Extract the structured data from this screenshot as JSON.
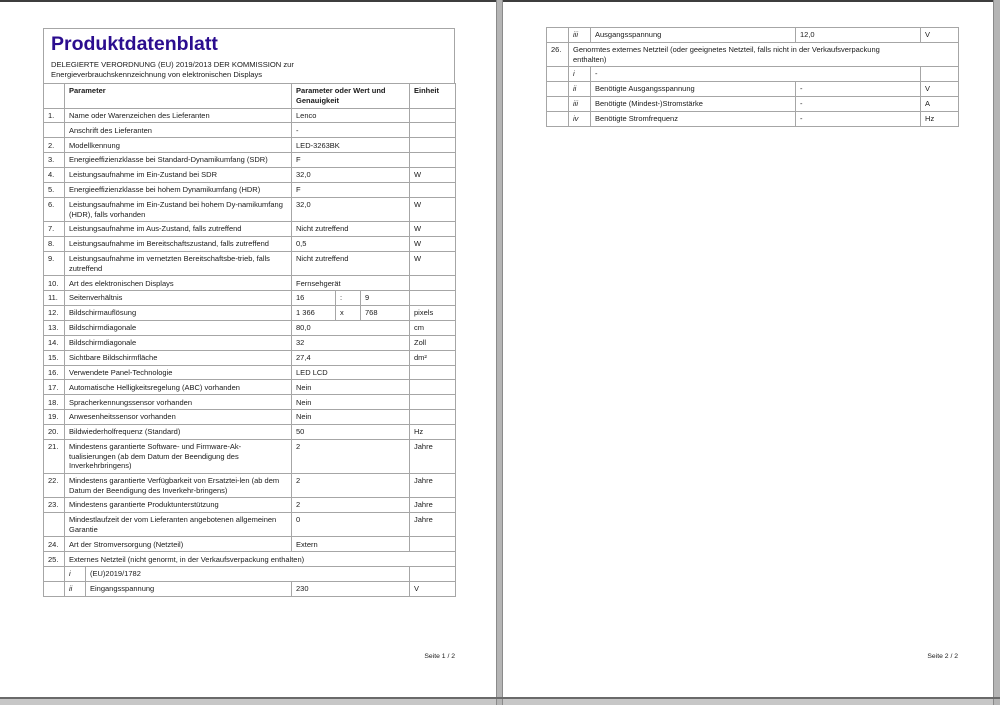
{
  "colors": {
    "title": "#2b0d8f",
    "border": "#a6a6a6",
    "section_border": "#7d7d7d",
    "page_background": "#ffffff",
    "viewer_background": "#c7c7c7"
  },
  "page1": {
    "title": "Produktdatenblatt",
    "subtitle_line1": "DELEGIERTE VERORDNUNG (EU) 2019/2013 DER KOMMISSION zur",
    "subtitle_line2": "Energieverbrauchskennzeichnung von elektronischen Displays",
    "header": {
      "param": "Parameter",
      "value": "Parameter oder Wert und Genauigkeit",
      "unit": "Einheit"
    },
    "rows": [
      {
        "num": "1.",
        "kind": "row",
        "align": "l",
        "param": "Name oder Warenzeichen des Lieferanten",
        "value": "Lenco",
        "unit": ""
      },
      {
        "num": "",
        "kind": "row",
        "align": "l",
        "param": "Anschrift des Lieferanten",
        "value": "-",
        "unit": ""
      },
      {
        "num": "2.",
        "kind": "row",
        "align": "l",
        "param": "Modellkennung",
        "value": "LED-3263BK",
        "unit": ""
      },
      {
        "num": "3.",
        "kind": "row",
        "align": "l",
        "param": "Energieeffizienzklasse bei Standard-Dynamikumfang (SDR)",
        "value": "F",
        "unit": ""
      },
      {
        "num": "4.",
        "kind": "row",
        "align": "r",
        "param": "Leistungsaufnahme im Ein-Zustand bei SDR",
        "value": "32,0",
        "unit": "W"
      },
      {
        "num": "5.",
        "kind": "row",
        "align": "l",
        "param": "Energieeffizienzklasse bei hohem Dynamikumfang (HDR)",
        "value": "F",
        "unit": ""
      },
      {
        "num": "6.",
        "kind": "row",
        "align": "r",
        "param": "Leistungsaufnahme im Ein-Zustand bei hohem Dy-namikumfang (HDR), falls vorhanden",
        "value": "32,0",
        "unit": "W"
      },
      {
        "num": "7.",
        "kind": "row",
        "align": "r",
        "param": "Leistungsaufnahme im Aus-Zustand, falls zutreffend",
        "value": "Nicht zutreffend",
        "unit": "W"
      },
      {
        "num": "8.",
        "kind": "row",
        "align": "r",
        "param": "Leistungsaufnahme im Bereitschaftszustand, falls zutreffend",
        "value": "0,5",
        "unit": "W"
      },
      {
        "num": "9.",
        "kind": "row",
        "align": "r",
        "param": "Leistungsaufnahme im vernetzten Bereitschaftsbe-trieb, falls zutreffend",
        "value": "Nicht zutreffend",
        "unit": "W"
      },
      {
        "num": "10.",
        "kind": "row",
        "align": "r",
        "param": "Art des elektronischen Displays",
        "value": "Fernsehgerät",
        "unit": ""
      },
      {
        "num": "11.",
        "kind": "split",
        "param": "Seitenverhältnis",
        "v1": "16",
        "v2": ":",
        "v3": "9",
        "unit": ""
      },
      {
        "num": "12.",
        "kind": "split",
        "param": "Bildschirmauflösung",
        "v1": "1 366",
        "v2": "x",
        "v3": "768",
        "unit": "pixels"
      },
      {
        "num": "13.",
        "kind": "row",
        "align": "r",
        "param": "Bildschirmdiagonale",
        "value": "80,0",
        "unit": "cm"
      },
      {
        "num": "14.",
        "kind": "row",
        "align": "r",
        "param": "Bildschirmdiagonale",
        "value": "32",
        "unit": "Zoll"
      },
      {
        "num": "15.",
        "kind": "row",
        "align": "r",
        "param": "Sichtbare Bildschirmfläche",
        "value": "27,4",
        "unit": "dm²"
      },
      {
        "num": "16.",
        "kind": "row",
        "align": "r",
        "param": "Verwendete Panel-Technologie",
        "value": "LED LCD",
        "unit": ""
      },
      {
        "num": "17.",
        "kind": "row",
        "align": "r",
        "param": "Automatische Helligkeitsregelung (ABC) vorhanden",
        "value": "Nein",
        "unit": ""
      },
      {
        "num": "18.",
        "kind": "row",
        "align": "r",
        "param": "Spracherkennungssensor vorhanden",
        "value": "Nein",
        "unit": ""
      },
      {
        "num": "19.",
        "kind": "row",
        "align": "r",
        "param": "Anwesenheitssensor vorhanden",
        "value": "Nein",
        "unit": ""
      },
      {
        "num": "20.",
        "kind": "row",
        "align": "r",
        "param": "Bildwiederholfrequenz (Standard)",
        "value": "50",
        "unit": "Hz"
      },
      {
        "num": "21.",
        "kind": "row",
        "align": "r",
        "param": "Mindestens garantierte Software- und Firmware-Ak-tualisierungen (ab dem Datum der Beendigung des Inverkehrbringens)",
        "value": "2",
        "unit": "Jahre"
      },
      {
        "num": "22.",
        "kind": "row",
        "align": "r",
        "param": "Mindestens garantierte Verfügbarkeit von Ersatztei-len (ab dem Datum der Beendigung des Inverkehr-bringens)",
        "value": "2",
        "unit": "Jahre"
      },
      {
        "num": "23.",
        "kind": "row",
        "align": "r",
        "param": "Mindestens garantierte Produktunterstützung",
        "value": "2",
        "unit": "Jahre"
      },
      {
        "num": "",
        "kind": "row",
        "align": "r",
        "param": "Mindestlaufzeit der vom Lieferanten angebotenen allgemeinen Garantie",
        "value": "0",
        "unit": "Jahre"
      },
      {
        "num": "24.",
        "kind": "row",
        "align": "l",
        "param": "Art der Stromversorgung (Netzteil)",
        "value": "Extern",
        "unit": ""
      },
      {
        "num": "25.",
        "kind": "section",
        "param": "Externes Netzteil (nicht genormt, in der Verkaufsverpackung enthalten)"
      },
      {
        "num": "",
        "kind": "subwide",
        "sub": "i",
        "param": "(EU)2019/1782",
        "unit": ""
      },
      {
        "num": "",
        "kind": "sub",
        "align": "r",
        "sub": "ii",
        "param": "Eingangsspannung",
        "value": "230",
        "unit": "V"
      }
    ],
    "footer": "Seite 1 / 2"
  },
  "page2": {
    "rows": [
      {
        "num": "",
        "kind": "sub",
        "align": "r",
        "sub": "iii",
        "param": "Ausgangsspannung",
        "value": "12,0",
        "unit": "V"
      },
      {
        "num": "26.",
        "kind": "section",
        "param": "Genormtes externes Netzteil (oder geeignetes Netzteil, falls nicht in der Verkaufsverpackung\nenthalten)"
      },
      {
        "num": "",
        "kind": "subwide",
        "sub": "i",
        "param": "-",
        "unit": ""
      },
      {
        "num": "",
        "kind": "sub",
        "align": "r",
        "sub": "ii",
        "param": "Benötigte Ausgangsspannung",
        "value": "-",
        "unit": "V"
      },
      {
        "num": "",
        "kind": "sub",
        "align": "r",
        "sub": "iii",
        "param": "Benötigte (Mindest-)Stromstärke",
        "value": "-",
        "unit": "A"
      },
      {
        "num": "",
        "kind": "sub",
        "align": "r",
        "sub": "iv",
        "param": "Benötigte Stromfrequenz",
        "value": "-",
        "unit": "Hz"
      }
    ],
    "footer": "Seite 2 / 2"
  }
}
